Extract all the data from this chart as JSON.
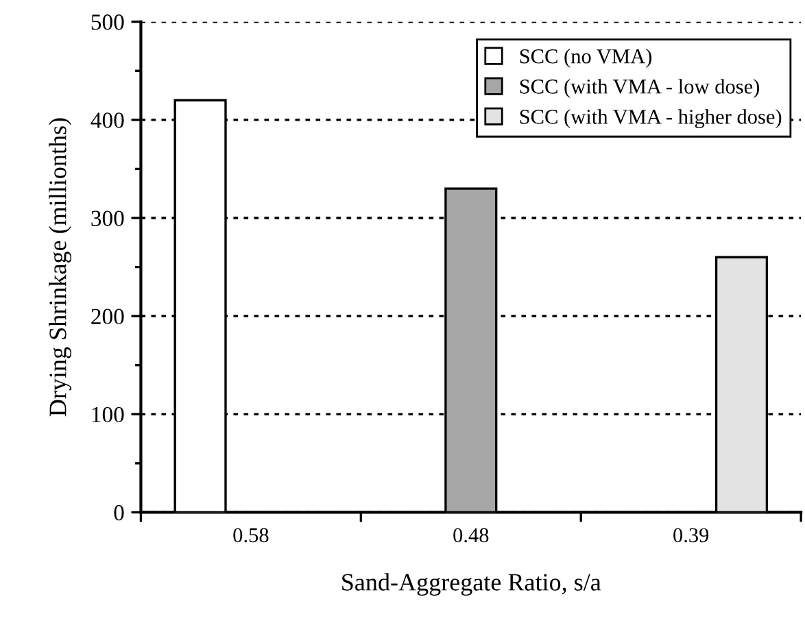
{
  "chart_data": {
    "type": "bar",
    "xlabel": "Sand-Aggregate Ratio, s/a",
    "ylabel": "Drying Shrinkage (millionths)",
    "categories": [
      "0.58",
      "0.48",
      "0.39"
    ],
    "series": [
      {
        "name": "SCC (no VMA)",
        "color": "#ffffff",
        "values": [
          420,
          null,
          null
        ]
      },
      {
        "name": "SCC (with VMA - low dose)",
        "color": "#a6a6a6",
        "values": [
          null,
          330,
          null
        ]
      },
      {
        "name": "SCC (with VMA - higher dose)",
        "color": "#e3e3e3",
        "values": [
          null,
          null,
          260
        ]
      }
    ],
    "ylim": [
      0,
      500
    ],
    "yticks": [
      0,
      100,
      200,
      300,
      400,
      500
    ],
    "grid": "y",
    "legend": "top right"
  }
}
